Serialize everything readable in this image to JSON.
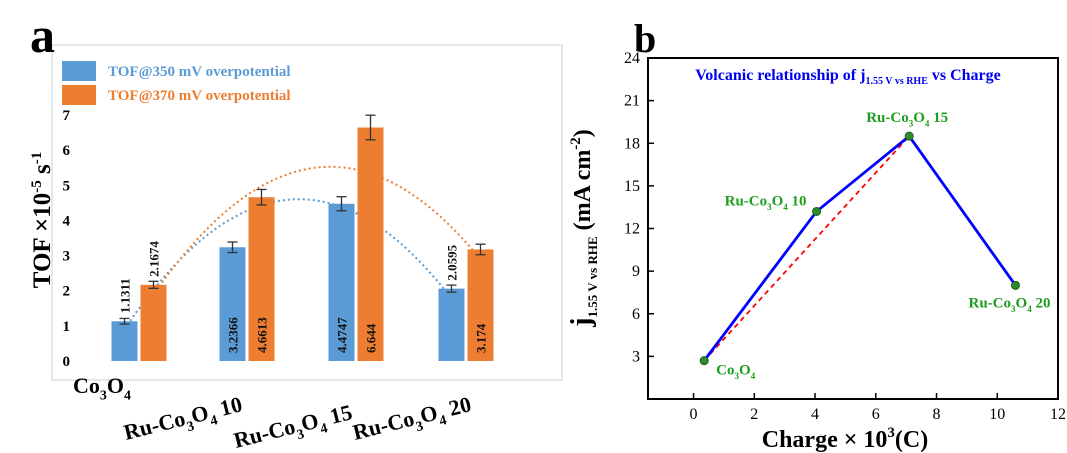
{
  "chart_data": [
    {
      "panel_label": "a",
      "type": "bar",
      "ylabel_parts": {
        "base": "TOF ×10",
        "sup1": "-5",
        "unit": " s",
        "sup2": "-1"
      },
      "categories": [
        {
          "base": "Co",
          "sub1": "3",
          "mid": "O",
          "sub2": "4",
          "tail": ""
        },
        {
          "base": "Ru-Co",
          "sub1": "3",
          "mid": "O",
          "sub2": "4",
          "tail": " 10"
        },
        {
          "base": "Ru-Co",
          "sub1": "3",
          "mid": "O",
          "sub2": "4",
          "tail": " 15"
        },
        {
          "base": "Ru-Co",
          "sub1": "3",
          "mid": "O",
          "sub2": "4",
          "tail": " 20"
        }
      ],
      "series": [
        {
          "name": "TOF@350 mV overpotential",
          "color": "#5B9BD5",
          "values": [
            1.1311,
            3.2366,
            4.4747,
            2.0595
          ],
          "labels": [
            "1.1311",
            "3.2366",
            "4.4747",
            "2.0595"
          ],
          "errors": [
            0.08,
            0.15,
            0.2,
            0.1
          ]
        },
        {
          "name": "TOF@370 mV overpotential",
          "color": "#ED7D31",
          "values": [
            2.1674,
            4.6613,
            6.644,
            3.174
          ],
          "labels": [
            "2.1674",
            "4.6613",
            "6.644",
            "3.174"
          ],
          "errors": [
            0.1,
            0.22,
            0.35,
            0.15
          ]
        }
      ],
      "yticks": [
        "0",
        "1",
        "2",
        "3",
        "4",
        "5",
        "6",
        "7"
      ],
      "ylim": [
        0,
        7
      ],
      "grid": false,
      "legend": "top-left",
      "trendlines": "dotted quadratic per series"
    },
    {
      "panel_label": "b",
      "type": "line",
      "title_parts": {
        "pre": "Volcanic relationship of j",
        "sub": "1.55 V vs RHE",
        "post": "  vs Charge"
      },
      "xlabel_parts": {
        "pre": "Charge × 10",
        "sup": "3",
        "post": "(C)"
      },
      "ylabel_parts": {
        "pre": "j",
        "sub": "1.55 V vs RHE",
        "post": " (mA cm",
        "sup": "-2",
        "end": ")"
      },
      "xticks": [
        "0",
        "2",
        "4",
        "6",
        "8",
        "10",
        "12"
      ],
      "yticks": [
        "3",
        "6",
        "9",
        "12",
        "15",
        "18",
        "21",
        "24"
      ],
      "xlim": [
        -1.5,
        12
      ],
      "ylim": [
        0,
        24
      ],
      "series": [
        {
          "style": "solid",
          "color": "#0000FF",
          "x": [
            0.35,
            4.05,
            7.1,
            10.6
          ],
          "y": [
            2.7,
            13.2,
            18.5,
            8.0
          ]
        },
        {
          "style": "dashed",
          "color": "#FF0000",
          "x": [
            0.35,
            7.1,
            10.6
          ],
          "y": [
            2.7,
            18.5,
            8.0
          ]
        }
      ],
      "point_labels": [
        {
          "base": "Co",
          "sub1": "3",
          "mid": "O",
          "sub2": "4",
          "tail": ""
        },
        {
          "base": "Ru-Co",
          "sub1": "3",
          "mid": "O",
          "sub2": "4",
          "tail": " 10"
        },
        {
          "base": "Ru-Co",
          "sub1": "3",
          "mid": "O",
          "sub2": "4",
          "tail": " 15"
        },
        {
          "base": "Ru-Co",
          "sub1": "3",
          "mid": "O",
          "sub2": "4",
          "tail": " 20"
        }
      ],
      "point_color": "#2E8B2E",
      "label_color": "#1E9E1E",
      "title_color": "#0000EE",
      "grid": false
    }
  ]
}
